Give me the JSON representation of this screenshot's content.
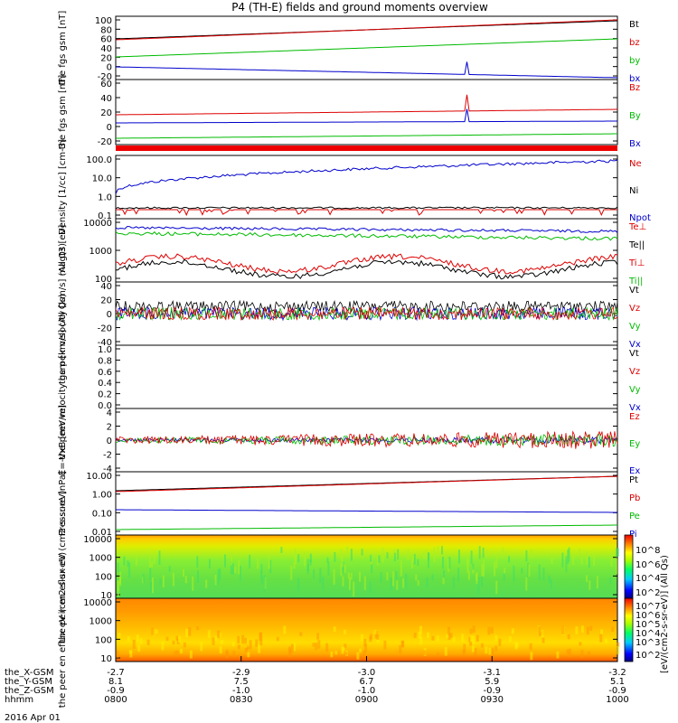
{
  "title": "P4 (TH-E) fields and ground moments overview",
  "date_label": "2016 Apr 01",
  "colorbar_label": "[eV/(cm2-s-sr-eV)] (All Qs)",
  "colorbar_ticks": [
    "10^8",
    "10^6",
    "10^4",
    "10^2",
    "10^7",
    "10^6",
    "10^5",
    "10^4",
    "10^3",
    "10^2"
  ],
  "x_axis": {
    "ticks": [
      "0800",
      "0830",
      "0900",
      "0930",
      "1000"
    ],
    "rows": [
      {
        "label": "the_X-GSM",
        "values": [
          "-2.7",
          "-2.9",
          "-3.0",
          "-3.1",
          "-3.2"
        ]
      },
      {
        "label": "the_Y-GSM",
        "values": [
          "8.1",
          "7.5",
          "6.7",
          "5.9",
          "5.1"
        ]
      },
      {
        "label": "the_Z-GSM",
        "values": [
          "-0.9",
          "-1.0",
          "-1.0",
          "-0.9",
          "-0.9"
        ]
      },
      {
        "label": "hhmm",
        "values": [
          "0800",
          "0830",
          "0900",
          "0930",
          "1000"
        ]
      }
    ]
  },
  "chart_data": [
    {
      "type": "line",
      "ylabel": "the fgs gsm [nT]",
      "yticks": [
        "100",
        "80",
        "60",
        "40",
        "20",
        "0",
        "-20"
      ],
      "legend": [
        {
          "name": "Bt",
          "color": "#000000"
        },
        {
          "name": "bz",
          "color": "#dd0000"
        },
        {
          "name": "by",
          "color": "#00bb00"
        },
        {
          "name": "bx",
          "color": "#0000cc"
        }
      ]
    },
    {
      "type": "line",
      "ylabel": "the fgs gsm [nT]",
      "yticks": [
        "60",
        "40",
        "20",
        "0",
        "-20"
      ],
      "legend": [
        {
          "name": "Bz",
          "color": "#dd0000"
        },
        {
          "name": "By",
          "color": "#00bb00"
        },
        {
          "name": "Bx",
          "color": "#0000cc"
        }
      ]
    },
    {
      "type": "line",
      "ylabel": "Density [1/cc] [cm-3]",
      "yticks": [
        "100.0",
        "10.0",
        "1.0",
        "0.1"
      ],
      "legend": [
        {
          "name": "Ne",
          "color": "#dd0000"
        },
        {
          "name": "Ni",
          "color": "#000000"
        },
        {
          "name": "Npot",
          "color": "#0000cc"
        }
      ]
    },
    {
      "type": "line",
      "ylabel": "magt3 [eV]",
      "yticks": [
        "10000",
        "1000",
        "100"
      ],
      "legend": [
        {
          "name": "Te⊥",
          "color": "#dd0000"
        },
        {
          "name": "Te||",
          "color": "#000000"
        },
        {
          "name": "Ti⊥",
          "color": "#dd0000"
        },
        {
          "name": "Ti||",
          "color": "#00bb00"
        }
      ]
    },
    {
      "type": "line",
      "ylabel": "the peir velocity [km/s] (All Qs)",
      "yticks": [
        "40",
        "20",
        "0",
        "-20",
        "-40"
      ],
      "legend": [
        {
          "name": "Vt",
          "color": "#000000"
        },
        {
          "name": "Vz",
          "color": "#dd0000"
        },
        {
          "name": "Vy",
          "color": "#00bb00"
        },
        {
          "name": "Vx",
          "color": "#0000cc"
        }
      ]
    },
    {
      "type": "line",
      "ylabel": "the peer velocity gsm [km/s] (All Qs)",
      "yticks": [
        "1.0",
        "0.8",
        "0.6",
        "0.4",
        "0.2",
        "0.0"
      ],
      "legend": [
        {
          "name": "Vt",
          "color": "#000000"
        },
        {
          "name": "Vz",
          "color": "#dd0000"
        },
        {
          "name": "Vy",
          "color": "#00bb00"
        },
        {
          "name": "Vx",
          "color": "#0000cc"
        }
      ]
    },
    {
      "type": "line",
      "ylabel": "E=-VxB [mV/m]",
      "yticks": [
        "4",
        "2",
        "0",
        "-2",
        "-4"
      ],
      "legend": [
        {
          "name": "Ez",
          "color": "#dd0000"
        },
        {
          "name": "Ey",
          "color": "#00bb00"
        },
        {
          "name": "Ex",
          "color": "#0000cc"
        }
      ]
    },
    {
      "type": "line",
      "ylabel": "Pressure [nPa]",
      "yticks": [
        "10.00",
        "1.00",
        "0.10",
        "0.01"
      ],
      "legend": [
        {
          "name": "Pt",
          "color": "#000000"
        },
        {
          "name": "Pb",
          "color": "#dd0000"
        },
        {
          "name": "Pe",
          "color": "#00bb00"
        },
        {
          "name": "Pi",
          "color": "#0000cc"
        }
      ]
    },
    {
      "type": "heatmap",
      "ylabel": "the peir en eflux eV (cm2-s-sr-eV)",
      "yticks": [
        "10000",
        "1000",
        "100",
        "10"
      ]
    },
    {
      "type": "heatmap",
      "ylabel": "the peer en eflux eV (cm2-s-sr-eV)",
      "yticks": [
        "10000",
        "1000",
        "100",
        "10"
      ]
    }
  ]
}
